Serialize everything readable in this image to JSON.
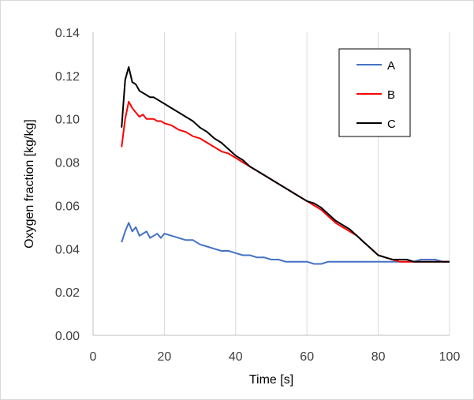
{
  "chart_data": {
    "type": "line",
    "title": "",
    "xlabel": "Time [s]",
    "ylabel": "Oxygen fraction [kg/kg]",
    "xlim": [
      0,
      100
    ],
    "ylim": [
      0,
      0.14
    ],
    "xticks": [
      "0",
      "20",
      "40",
      "60",
      "80",
      "100"
    ],
    "yticks": [
      "0.00",
      "0.02",
      "0.04",
      "0.06",
      "0.08",
      "0.10",
      "0.12",
      "0.14"
    ],
    "grid": "vertical",
    "legend_position": "top-right",
    "series": [
      {
        "name": "A",
        "color": "#4472c4",
        "points": [
          [
            8,
            0.043
          ],
          [
            9,
            0.048
          ],
          [
            10,
            0.052
          ],
          [
            11,
            0.048
          ],
          [
            12,
            0.05
          ],
          [
            13,
            0.046
          ],
          [
            14,
            0.047
          ],
          [
            15,
            0.048
          ],
          [
            16,
            0.045
          ],
          [
            17,
            0.046
          ],
          [
            18,
            0.047
          ],
          [
            19,
            0.045
          ],
          [
            20,
            0.047
          ],
          [
            22,
            0.046
          ],
          [
            24,
            0.045
          ],
          [
            26,
            0.044
          ],
          [
            28,
            0.044
          ],
          [
            30,
            0.042
          ],
          [
            32,
            0.041
          ],
          [
            34,
            0.04
          ],
          [
            36,
            0.039
          ],
          [
            38,
            0.039
          ],
          [
            40,
            0.038
          ],
          [
            42,
            0.037
          ],
          [
            44,
            0.037
          ],
          [
            46,
            0.036
          ],
          [
            48,
            0.036
          ],
          [
            50,
            0.035
          ],
          [
            52,
            0.035
          ],
          [
            54,
            0.034
          ],
          [
            56,
            0.034
          ],
          [
            58,
            0.034
          ],
          [
            60,
            0.034
          ],
          [
            62,
            0.033
          ],
          [
            64,
            0.033
          ],
          [
            66,
            0.034
          ],
          [
            68,
            0.034
          ],
          [
            70,
            0.034
          ],
          [
            72,
            0.034
          ],
          [
            74,
            0.034
          ],
          [
            76,
            0.034
          ],
          [
            78,
            0.034
          ],
          [
            80,
            0.034
          ],
          [
            82,
            0.034
          ],
          [
            84,
            0.034
          ],
          [
            86,
            0.034
          ],
          [
            88,
            0.034
          ],
          [
            90,
            0.034
          ],
          [
            92,
            0.035
          ],
          [
            94,
            0.035
          ],
          [
            96,
            0.035
          ],
          [
            98,
            0.034
          ],
          [
            100,
            0.034
          ]
        ]
      },
      {
        "name": "B",
        "color": "#ff0000",
        "points": [
          [
            8,
            0.087
          ],
          [
            9,
            0.1
          ],
          [
            10,
            0.108
          ],
          [
            11,
            0.105
          ],
          [
            12,
            0.103
          ],
          [
            13,
            0.101
          ],
          [
            14,
            0.102
          ],
          [
            15,
            0.1
          ],
          [
            16,
            0.1
          ],
          [
            17,
            0.1
          ],
          [
            18,
            0.099
          ],
          [
            19,
            0.099
          ],
          [
            20,
            0.098
          ],
          [
            22,
            0.097
          ],
          [
            24,
            0.095
          ],
          [
            26,
            0.094
          ],
          [
            28,
            0.092
          ],
          [
            30,
            0.091
          ],
          [
            32,
            0.089
          ],
          [
            34,
            0.087
          ],
          [
            36,
            0.085
          ],
          [
            38,
            0.084
          ],
          [
            40,
            0.082
          ],
          [
            42,
            0.08
          ],
          [
            44,
            0.078
          ],
          [
            46,
            0.076
          ],
          [
            48,
            0.074
          ],
          [
            50,
            0.072
          ],
          [
            52,
            0.07
          ],
          [
            54,
            0.068
          ],
          [
            56,
            0.066
          ],
          [
            58,
            0.064
          ],
          [
            60,
            0.062
          ],
          [
            62,
            0.06
          ],
          [
            64,
            0.058
          ],
          [
            66,
            0.055
          ],
          [
            68,
            0.052
          ],
          [
            70,
            0.05
          ],
          [
            72,
            0.048
          ],
          [
            74,
            0.046
          ],
          [
            76,
            0.043
          ],
          [
            78,
            0.04
          ],
          [
            80,
            0.037
          ],
          [
            82,
            0.036
          ],
          [
            84,
            0.035
          ],
          [
            86,
            0.034
          ],
          [
            88,
            0.034
          ],
          [
            90,
            0.034
          ],
          [
            92,
            0.034
          ],
          [
            94,
            0.034
          ],
          [
            96,
            0.034
          ],
          [
            98,
            0.034
          ],
          [
            100,
            0.034
          ]
        ]
      },
      {
        "name": "C",
        "color": "#000000",
        "points": [
          [
            8,
            0.096
          ],
          [
            9,
            0.118
          ],
          [
            10,
            0.124
          ],
          [
            11,
            0.117
          ],
          [
            12,
            0.116
          ],
          [
            13,
            0.113
          ],
          [
            14,
            0.112
          ],
          [
            15,
            0.111
          ],
          [
            16,
            0.11
          ],
          [
            17,
            0.11
          ],
          [
            18,
            0.109
          ],
          [
            19,
            0.108
          ],
          [
            20,
            0.107
          ],
          [
            22,
            0.105
          ],
          [
            24,
            0.103
          ],
          [
            26,
            0.101
          ],
          [
            28,
            0.099
          ],
          [
            30,
            0.096
          ],
          [
            32,
            0.094
          ],
          [
            34,
            0.091
          ],
          [
            36,
            0.089
          ],
          [
            38,
            0.086
          ],
          [
            40,
            0.083
          ],
          [
            42,
            0.081
          ],
          [
            44,
            0.078
          ],
          [
            46,
            0.076
          ],
          [
            48,
            0.074
          ],
          [
            50,
            0.072
          ],
          [
            52,
            0.07
          ],
          [
            54,
            0.068
          ],
          [
            56,
            0.066
          ],
          [
            58,
            0.064
          ],
          [
            60,
            0.062
          ],
          [
            62,
            0.061
          ],
          [
            64,
            0.059
          ],
          [
            66,
            0.056
          ],
          [
            68,
            0.053
          ],
          [
            70,
            0.051
          ],
          [
            72,
            0.049
          ],
          [
            74,
            0.046
          ],
          [
            76,
            0.043
          ],
          [
            78,
            0.04
          ],
          [
            80,
            0.037
          ],
          [
            82,
            0.036
          ],
          [
            84,
            0.035
          ],
          [
            86,
            0.035
          ],
          [
            88,
            0.035
          ],
          [
            90,
            0.034
          ],
          [
            92,
            0.034
          ],
          [
            94,
            0.034
          ],
          [
            96,
            0.034
          ],
          [
            98,
            0.034
          ],
          [
            100,
            0.034
          ]
        ]
      }
    ]
  }
}
